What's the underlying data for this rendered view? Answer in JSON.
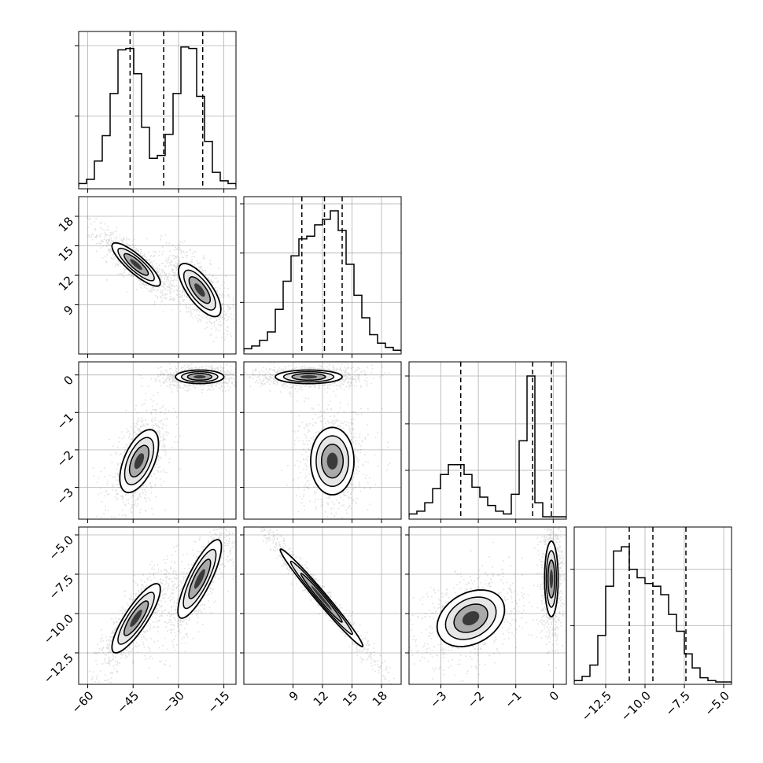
{
  "chart_data": {
    "type": "corner",
    "n_params": 4,
    "grid": true,
    "params": [
      {
        "range": [
          -63,
          -11
        ],
        "ticks": [
          -60,
          -45,
          -30,
          -15
        ],
        "tick_labels": [
          "−60",
          "−45",
          "−30",
          "−15"
        ],
        "quantiles": [
          -46.0,
          -34.9,
          -22.0
        ]
      },
      {
        "range": [
          4,
          20
        ],
        "ticks": [
          9,
          12,
          15,
          18
        ],
        "tick_labels": [
          "9",
          "12",
          "15",
          "18"
        ],
        "quantiles": [
          9.9,
          12.2,
          14.0
        ]
      },
      {
        "range": [
          -3.85,
          0.35
        ],
        "ticks": [
          -3,
          -2,
          -1,
          0
        ],
        "tick_labels": [
          "−3",
          "−2",
          "−1",
          "0"
        ],
        "quantiles": [
          -2.47,
          -0.55,
          -0.05
        ]
      },
      {
        "range": [
          -14.5,
          -4.5
        ],
        "ticks": [
          -12.5,
          -10.0,
          -7.5,
          -5.0
        ],
        "tick_labels": [
          "−12.5",
          "−10.0",
          "−7.5",
          "−5.0"
        ],
        "quantiles": [
          -11.0,
          -9.5,
          -7.4
        ]
      }
    ],
    "histograms": [
      {
        "bins": 20,
        "counts": [
          0.02,
          0.05,
          0.18,
          0.36,
          0.66,
          0.97,
          0.98,
          0.8,
          0.42,
          0.2,
          0.22,
          0.37,
          0.66,
          0.99,
          0.98,
          0.64,
          0.32,
          0.1,
          0.04,
          0.02
        ],
        "max": 1.0,
        "y_ticks": [
          0.5,
          1.0
        ]
      },
      {
        "bins": 20,
        "counts": [
          0.02,
          0.04,
          0.08,
          0.14,
          0.3,
          0.5,
          0.68,
          0.8,
          0.82,
          0.9,
          0.94,
          1.0,
          0.86,
          0.62,
          0.4,
          0.24,
          0.12,
          0.06,
          0.03,
          0.01
        ],
        "max": 1.0,
        "y_ticks": [
          0.35,
          0.7,
          1.05
        ]
      },
      {
        "bins": 20,
        "counts": [
          0.02,
          0.04,
          0.1,
          0.2,
          0.3,
          0.37,
          0.37,
          0.3,
          0.21,
          0.14,
          0.08,
          0.04,
          0.02,
          0.16,
          0.54,
          1.0,
          0.1,
          0.0,
          0.0,
          0.0
        ],
        "max": 1.0,
        "y_ticks": [
          0.33,
          0.66,
          1.0
        ]
      },
      {
        "bins": 20,
        "counts": [
          0.01,
          0.04,
          0.12,
          0.33,
          0.68,
          0.93,
          0.96,
          0.8,
          0.74,
          0.7,
          0.68,
          0.62,
          0.48,
          0.36,
          0.2,
          0.1,
          0.03,
          0.01,
          0.0,
          0.0
        ],
        "max": 1.0,
        "y_ticks": [
          0.4,
          0.8
        ]
      }
    ],
    "pairs": [
      {
        "x": 0,
        "y": 1,
        "modes": [
          {
            "cx": -44,
            "cy": 13.1,
            "sx": 4.0,
            "sy": 1.1,
            "rho": -0.85,
            "w": 1.0
          },
          {
            "cx": -23,
            "cy": 10.5,
            "sx": 3.5,
            "sy": 1.35,
            "rho": -0.72,
            "w": 0.9
          }
        ]
      },
      {
        "x": 0,
        "y": 2,
        "modes": [
          {
            "cx": -23,
            "cy": -0.05,
            "sx": 4.0,
            "sy": 0.09,
            "rho": 0.0,
            "w": 1.0
          },
          {
            "cx": -43,
            "cy": -2.3,
            "sx": 3.2,
            "sy": 0.42,
            "rho": 0.55,
            "w": 0.9
          }
        ]
      },
      {
        "x": 0,
        "y": 3,
        "modes": [
          {
            "cx": -44,
            "cy": -10.3,
            "sx": 4.0,
            "sy": 1.1,
            "rho": 0.84,
            "w": 1.0
          },
          {
            "cx": -23,
            "cy": -7.8,
            "sx": 3.6,
            "sy": 1.25,
            "rho": 0.82,
            "w": 0.9
          }
        ]
      },
      {
        "x": 1,
        "y": 2,
        "modes": [
          {
            "cx": 10.6,
            "cy": -0.05,
            "sx": 1.7,
            "sy": 0.09,
            "rho": 0.0,
            "w": 1.0
          },
          {
            "cx": 13.0,
            "cy": -2.3,
            "sx": 1.1,
            "sy": 0.45,
            "rho": 0.0,
            "w": 0.9
          }
        ]
      },
      {
        "x": 1,
        "y": 3,
        "modes": [
          {
            "cx": 11.9,
            "cy": -9.0,
            "sx": 2.1,
            "sy": 1.55,
            "rho": -0.985,
            "w": 1.0
          }
        ]
      },
      {
        "x": 2,
        "y": 3,
        "modes": [
          {
            "cx": -0.05,
            "cy": -7.8,
            "sx": 0.09,
            "sy": 1.2,
            "rho": 0.0,
            "w": 1.0
          },
          {
            "cx": -2.2,
            "cy": -10.3,
            "sx": 0.45,
            "sy": 0.9,
            "rho": 0.3,
            "w": 0.9
          }
        ]
      }
    ]
  }
}
